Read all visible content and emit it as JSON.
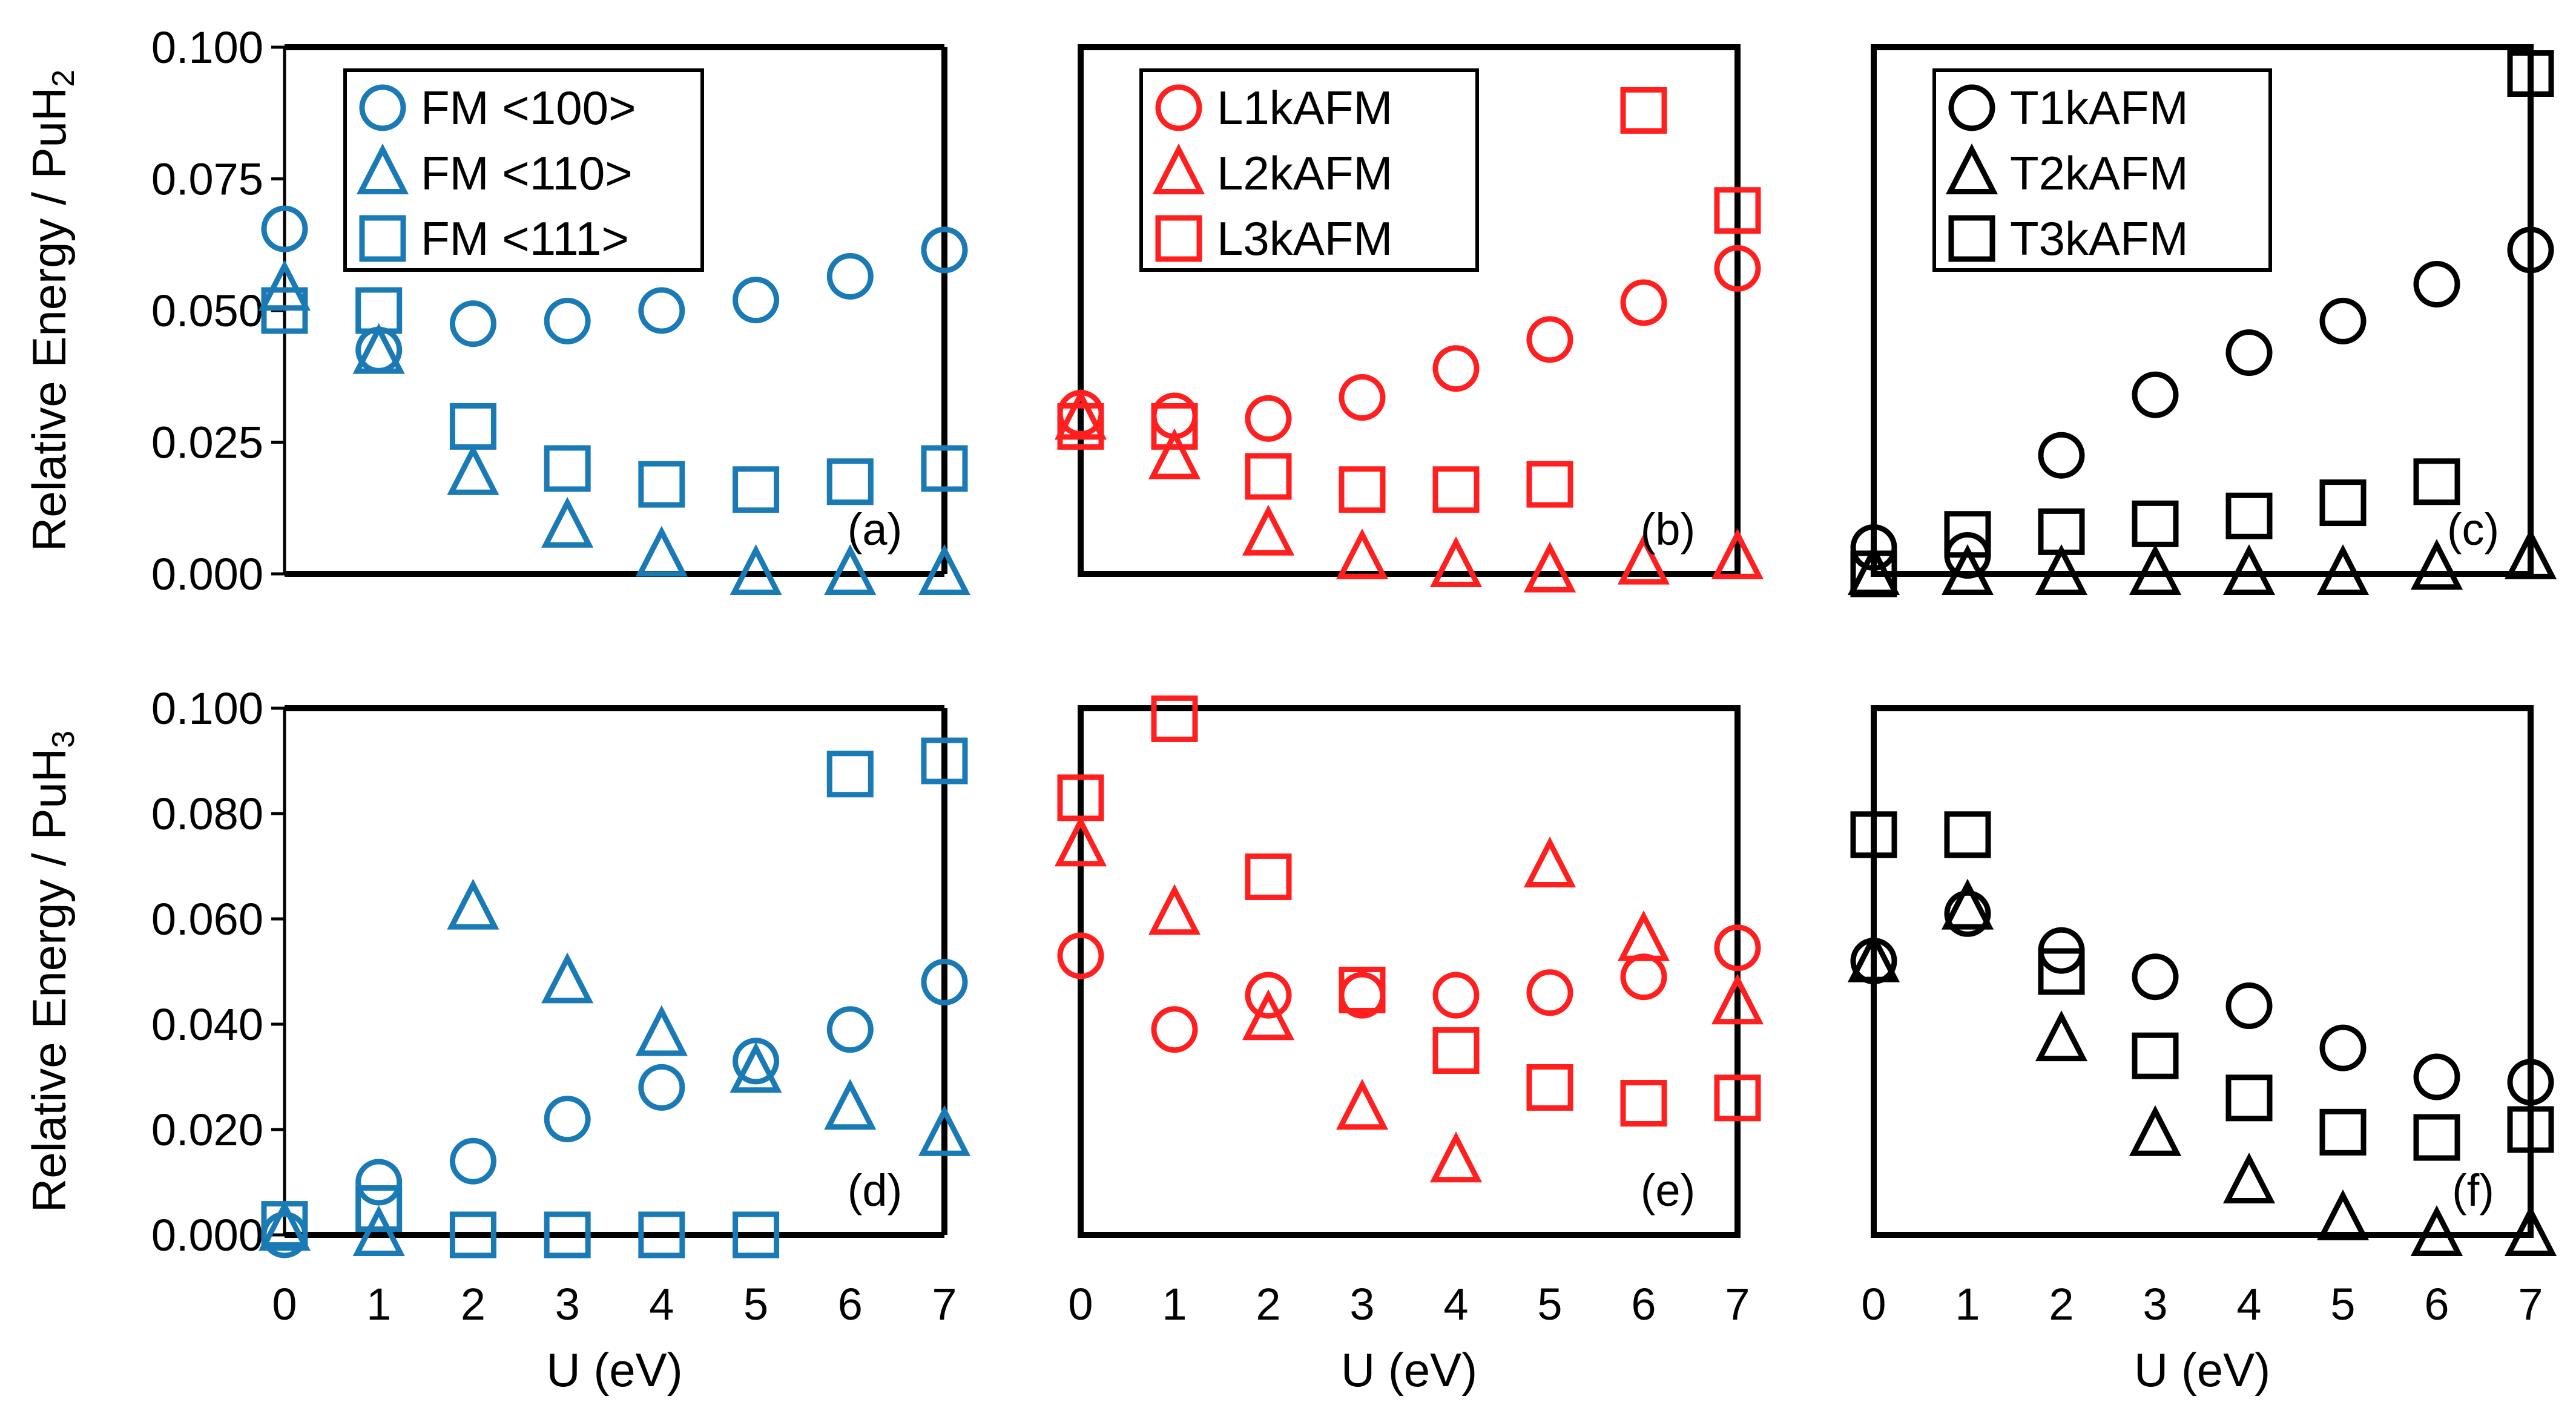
{
  "chart_data": {
    "type": "scatter",
    "xlabel": "U (eV)",
    "x": [
      0,
      1,
      2,
      3,
      4,
      5,
      6,
      7
    ],
    "xticks": [
      "0",
      "1",
      "2",
      "3",
      "4",
      "5",
      "6",
      "7"
    ],
    "xlim": [
      0,
      7
    ],
    "rows": [
      {
        "ylabel_main": "Relative Energy / PuH",
        "ylabel_sub": "2",
        "ylim": [
          0,
          0.1
        ],
        "yticks": [
          "0.000",
          "0.025",
          "0.050",
          "0.075",
          "0.100"
        ],
        "ytick_values": [
          0,
          0.025,
          0.05,
          0.075,
          0.1
        ]
      },
      {
        "ylabel_main": "Relative Energy / PuH",
        "ylabel_sub": "3",
        "ylim": [
          0,
          0.1
        ],
        "yticks": [
          "0.000",
          "0.020",
          "0.040",
          "0.060",
          "0.080",
          "0.100"
        ],
        "ytick_values": [
          0,
          0.02,
          0.04,
          0.06,
          0.08,
          0.1
        ]
      }
    ],
    "panels": [
      {
        "label": "(a)",
        "row": 0,
        "col": 0,
        "color": "#1a7ab5",
        "legend": true,
        "border": "partial",
        "series": [
          {
            "name": "FM <100>",
            "marker": "circle",
            "values": [
              0.0655,
              0.0425,
              0.0475,
              0.048,
              0.05,
              0.052,
              0.0565,
              0.0615
            ]
          },
          {
            "name": "FM <110>",
            "marker": "triangle",
            "values": [
              0.054,
              0.042,
              0.019,
              0.009,
              0.0035,
              0.0,
              0.0,
              0.0
            ]
          },
          {
            "name": "FM <111>",
            "marker": "square",
            "values": [
              0.05,
              0.05,
              0.028,
              0.02,
              0.017,
              0.016,
              0.0175,
              0.02
            ]
          }
        ]
      },
      {
        "label": "(b)",
        "row": 0,
        "col": 1,
        "color": "#ff1f1f",
        "legend": true,
        "border": "full",
        "series": [
          {
            "name": "L1kAFM",
            "marker": "circle",
            "values": [
              0.0305,
              0.03,
              0.0295,
              0.0335,
              0.039,
              0.0445,
              0.0515,
              0.058
            ]
          },
          {
            "name": "L2kAFM",
            "marker": "triangle",
            "values": [
              0.0295,
              0.022,
              0.0075,
              0.003,
              0.0015,
              0.0005,
              0.002,
              0.003
            ]
          },
          {
            "name": "L3kAFM",
            "marker": "square",
            "values": [
              0.028,
              0.028,
              0.0185,
              0.016,
              0.016,
              0.017,
              0.088,
              0.069
            ]
          }
        ]
      },
      {
        "label": "(c)",
        "row": 0,
        "col": 2,
        "color": "#000000",
        "legend": true,
        "border": "full",
        "series": [
          {
            "name": "T1kAFM",
            "marker": "circle",
            "values": [
              0.005,
              0.0035,
              0.0225,
              0.034,
              0.042,
              0.048,
              0.055,
              0.0615
            ]
          },
          {
            "name": "T2kAFM",
            "marker": "triangle",
            "values": [
              0.0,
              0.0,
              0.0,
              0.0,
              0.0,
              0.0,
              0.001,
              0.003
            ]
          },
          {
            "name": "T3kAFM",
            "marker": "square",
            "values": [
              0.0,
              0.0075,
              0.008,
              0.0095,
              0.011,
              0.0135,
              0.0175,
              0.095
            ]
          }
        ]
      },
      {
        "label": "(d)",
        "row": 1,
        "col": 0,
        "color": "#1a7ab5",
        "legend": false,
        "border": "partial",
        "series": [
          {
            "name": "FM <100>",
            "marker": "circle",
            "values": [
              0.0,
              0.01,
              0.014,
              0.022,
              0.028,
              0.033,
              0.039,
              0.048
            ]
          },
          {
            "name": "FM <110>",
            "marker": "triangle",
            "values": [
              0.001,
              0.0,
              0.062,
              0.048,
              0.038,
              0.031,
              0.024,
              0.019
            ]
          },
          {
            "name": "FM <111>",
            "marker": "square",
            "values": [
              0.002,
              0.005,
              0.0,
              0.0,
              0.0,
              0.0,
              0.0875,
              0.09
            ]
          }
        ]
      },
      {
        "label": "(e)",
        "row": 1,
        "col": 1,
        "color": "#ff1f1f",
        "legend": false,
        "border": "full",
        "series": [
          {
            "name": "L1kAFM",
            "marker": "circle",
            "values": [
              0.053,
              0.039,
              0.0455,
              0.0455,
              0.0455,
              0.046,
              0.049,
              0.0545
            ]
          },
          {
            "name": "L2kAFM",
            "marker": "triangle",
            "values": [
              0.074,
              0.061,
              0.041,
              0.024,
              0.014,
              0.07,
              0.056,
              0.044
            ]
          },
          {
            "name": "L3kAFM",
            "marker": "square",
            "values": [
              0.083,
              0.098,
              0.068,
              0.0465,
              0.035,
              0.028,
              0.025,
              0.026
            ]
          }
        ]
      },
      {
        "label": "(f)",
        "row": 1,
        "col": 2,
        "color": "#000000",
        "legend": false,
        "border": "full",
        "series": [
          {
            "name": "T1kAFM",
            "marker": "circle",
            "values": [
              0.052,
              0.061,
              0.054,
              0.049,
              0.0435,
              0.0355,
              0.03,
              0.029
            ]
          },
          {
            "name": "T2kAFM",
            "marker": "triangle",
            "values": [
              0.052,
              0.062,
              0.037,
              0.019,
              0.01,
              0.003,
              0.0,
              0.0
            ]
          },
          {
            "name": "T3kAFM",
            "marker": "square",
            "values": [
              0.076,
              0.076,
              0.05,
              0.034,
              0.026,
              0.0195,
              0.0185,
              0.02
            ]
          }
        ]
      }
    ]
  }
}
